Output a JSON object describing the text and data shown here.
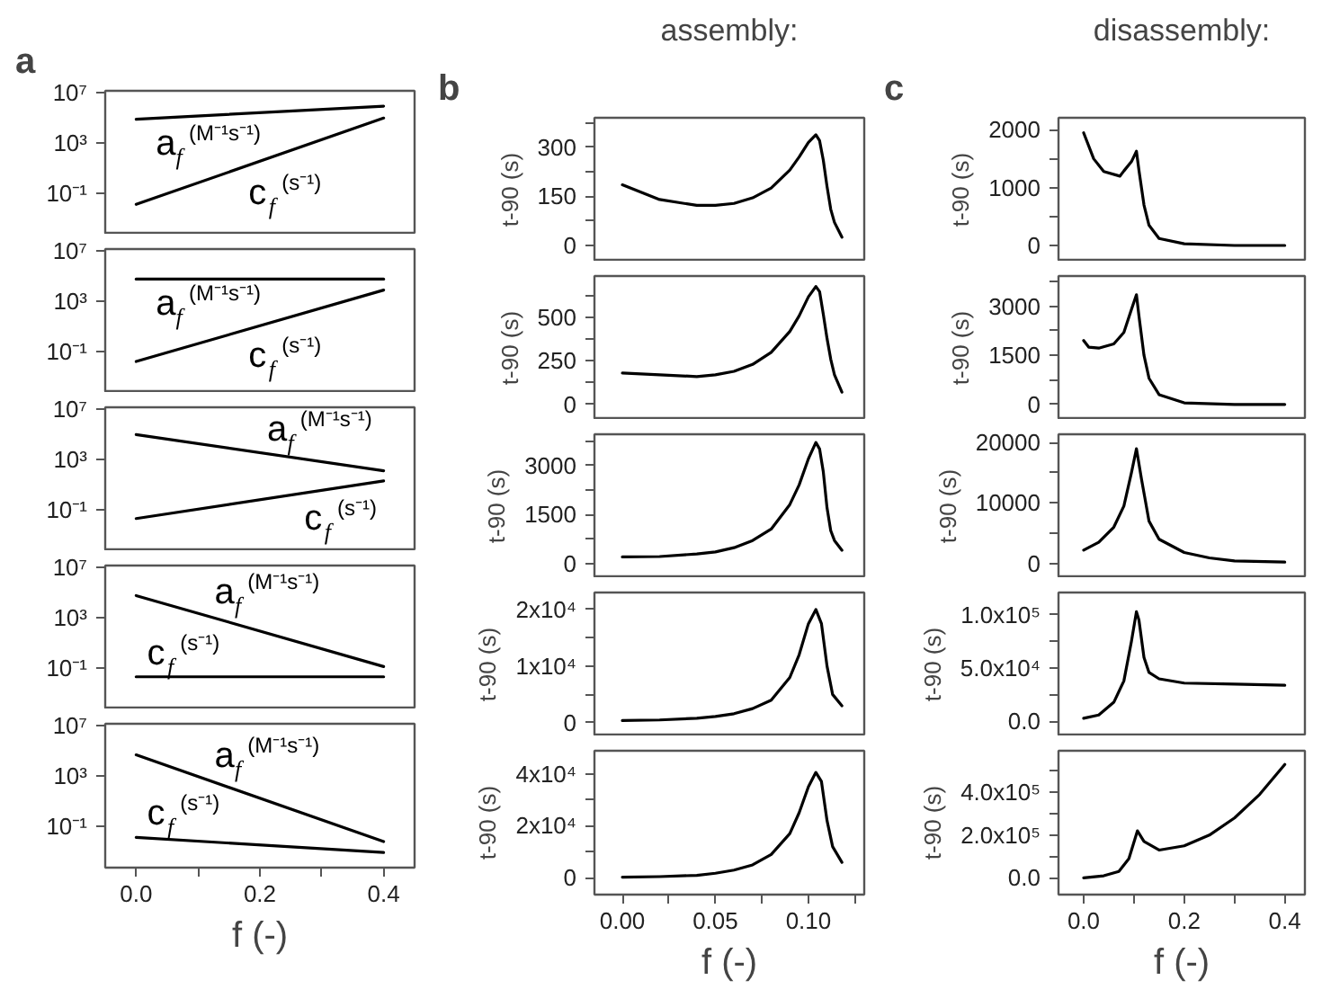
{
  "chart_data": [
    {
      "type": "line",
      "annotations": [
        "a",
        {
          "text": "a$_{f}$ (M⁻¹s⁻¹)",
          "x": 0.02,
          "y": 90000
        },
        {
          "text": "c$_{f}$ (s⁻¹)",
          "x": 0.17,
          "y": 11
        }
      ],
      "log": true,
      "x": [
        0,
        0.4
      ],
      "series": [
        {
          "color": "#000000",
          "values": [
            80000,
            900000
          ]
        },
        {
          "color": "#000000",
          "values": [
            0.013,
            100000
          ]
        }
      ],
      "xlim": [
        -0.05,
        0.45
      ],
      "ylim": [
        5e-05,
        15000000.0
      ],
      "yticks": [
        {
          "value": 10000000,
          "label": "10⁷"
        },
        {
          "value": 1000,
          "label": "10³"
        },
        {
          "value": 0.1,
          "label": "10⁻¹"
        }
      ],
      "tick_labels": "y"
    },
    {
      "type": "line",
      "annotations": [
        {
          "text": "a$_{f}$ (M⁻¹s⁻¹)",
          "x": 0.02,
          "y": 60000
        },
        {
          "text": "c$_{f}$ (s⁻¹)",
          "x": 0.17,
          "y": 4.2
        }
      ],
      "log": true,
      "x": [
        0,
        0.4
      ],
      "series": [
        {
          "color": "#000000",
          "values": [
            60000,
            60000
          ]
        },
        {
          "color": "#000000",
          "values": [
            0.016,
            8000
          ]
        }
      ],
      "xlim": [
        -0.05,
        0.45
      ],
      "ylim": [
        5e-05,
        15000000.0
      ],
      "yticks": [
        {
          "value": 10000000,
          "label": "10⁷"
        },
        {
          "value": 1000,
          "label": "10³"
        },
        {
          "value": 0.1,
          "label": "10⁻¹"
        }
      ],
      "tick_labels": "y"
    },
    {
      "type": "line",
      "annotations": [
        {
          "text": "a$_{f}$ (M⁻¹s⁻¹)",
          "x": 0.2,
          "y": 3500
        },
        {
          "text": "c$_{f}$ (s⁻¹)",
          "x": 0.26,
          "y": 1.8
        }
      ],
      "log": true,
      "x": [
        0,
        0.4
      ],
      "series": [
        {
          "color": "#000000",
          "values": [
            100000,
            130
          ]
        },
        {
          "color": "#000000",
          "values": [
            0.02,
            20
          ]
        }
      ],
      "xlim": [
        -0.05,
        0.45
      ],
      "ylim": [
        5e-05,
        15000000.0
      ],
      "yticks": [
        {
          "value": 10000000,
          "label": "10⁷"
        },
        {
          "value": 1000,
          "label": "10³"
        },
        {
          "value": 0.1,
          "label": "10⁻¹"
        }
      ],
      "tick_labels": "y"
    },
    {
      "type": "line",
      "annotations": [
        {
          "text": "a$_{f}$ (M⁻¹s⁻¹)",
          "x": 0.115,
          "y": 1400
        },
        {
          "text": "c$_{f}$ (s⁻¹)",
          "x": 0.006,
          "y": 0.02
        }
      ],
      "log": true,
      "x": [
        0,
        0.4
      ],
      "series": [
        {
          "color": "#000000",
          "values": [
            60000,
            0.13
          ]
        },
        {
          "color": "#000000",
          "values": [
            0.02,
            0.02
          ]
        }
      ],
      "xlim": [
        -0.05,
        0.45
      ],
      "ylim": [
        5e-05,
        15000000.0
      ],
      "yticks": [
        {
          "value": 10000000,
          "label": "10⁷"
        },
        {
          "value": 1000,
          "label": "10³"
        },
        {
          "value": 0.1,
          "label": "10⁻¹"
        }
      ],
      "tick_labels": "y"
    },
    {
      "type": "line",
      "annotations": [
        {
          "text": "a$_{f}$ (M⁻¹s⁻¹)",
          "x": 0.115,
          "y": 510
        },
        {
          "text": "c$_{f}$ (s⁻¹)",
          "x": 0.006,
          "y": 0.013
        }
      ],
      "log": true,
      "xlabel": "f (-)",
      "x": [
        0,
        0.4
      ],
      "series": [
        {
          "color": "#000000",
          "values": [
            50000,
            0.006
          ]
        },
        {
          "color": "#000000",
          "values": [
            0.013,
            0.0008
          ]
        }
      ],
      "xlim": [
        -0.05,
        0.45
      ],
      "xticks": [
        {
          "value": 0,
          "label": "0.0"
        },
        {
          "value": 0.1,
          "label": null
        },
        {
          "value": 0.2,
          "label": "0.2"
        },
        {
          "value": 0.3,
          "label": null
        },
        {
          "value": 0.4,
          "label": "0.4"
        }
      ],
      "ylim": [
        5e-05,
        15000000.0
      ],
      "yticks": [
        {
          "value": 10000000,
          "label": "10⁷"
        },
        {
          "value": 1000,
          "label": "10³"
        },
        {
          "value": 0.1,
          "label": "10⁻¹"
        }
      ]
    },
    {
      "type": "line",
      "title": "assembly:",
      "annotations": [
        "b"
      ],
      "ylabel": "t-90 (s)",
      "x": [
        0,
        0.02,
        0.04,
        0.05,
        0.06,
        0.07,
        0.08,
        0.09,
        0.095,
        0.1,
        0.104,
        0.106,
        0.108,
        0.11,
        0.112,
        0.114,
        0.118
      ],
      "series": [
        {
          "color": "#000000",
          "values": [
            185,
            140,
            122,
            122,
            128,
            145,
            175,
            230,
            270,
            315,
            338,
            320,
            260,
            180,
            110,
            70,
            25
          ]
        }
      ],
      "xlim": [
        -0.015,
        0.13
      ],
      "ylim": [
        -50,
        390
      ],
      "yticks": [
        0,
        {
          "value": 75,
          "label": null
        },
        150,
        {
          "value": 225,
          "label": null
        },
        300,
        {
          "value": 375,
          "label": null
        }
      ],
      "tick_labels": "y"
    },
    {
      "type": "line",
      "ylabel": "t-90 (s)",
      "x": [
        0,
        0.02,
        0.04,
        0.05,
        0.06,
        0.07,
        0.08,
        0.09,
        0.095,
        0.1,
        0.104,
        0.106,
        0.108,
        0.11,
        0.112,
        0.114,
        0.118
      ],
      "series": [
        {
          "color": "#000000",
          "values": [
            180,
            170,
            160,
            170,
            190,
            230,
            300,
            420,
            510,
            620,
            680,
            650,
            520,
            380,
            260,
            170,
            70
          ]
        }
      ],
      "xlim": [
        -0.015,
        0.13
      ],
      "ylim": [
        -90,
        740
      ],
      "yticks": [
        0,
        {
          "value": 125,
          "label": null
        },
        250,
        {
          "value": 375,
          "label": null
        },
        500,
        {
          "value": 625,
          "label": null
        }
      ],
      "tick_labels": "y"
    },
    {
      "type": "line",
      "ylabel": "t-90 (s)",
      "x": [
        0,
        0.02,
        0.04,
        0.05,
        0.06,
        0.07,
        0.08,
        0.09,
        0.095,
        0.1,
        0.104,
        0.106,
        0.108,
        0.11,
        0.112,
        0.114,
        0.118
      ],
      "series": [
        {
          "color": "#000000",
          "values": [
            200,
            210,
            290,
            350,
            480,
            700,
            1050,
            1800,
            2400,
            3200,
            3700,
            3500,
            2800,
            1700,
            1000,
            700,
            400
          ]
        }
      ],
      "xlim": [
        -0.015,
        0.13
      ],
      "ylim": [
        -450,
        3950
      ],
      "yticks": [
        0,
        {
          "value": 750,
          "label": null
        },
        1500,
        {
          "value": 2250,
          "label": null
        },
        3000,
        {
          "value": 3750,
          "label": null
        }
      ],
      "tick_labels": "y"
    },
    {
      "type": "line",
      "ylabel": "t-90 (s)",
      "x": [
        0,
        0.02,
        0.04,
        0.05,
        0.06,
        0.07,
        0.08,
        0.09,
        0.095,
        0.1,
        0.104,
        0.107,
        0.11,
        0.113,
        0.118
      ],
      "series": [
        {
          "color": "#000000",
          "values": [
            400,
            500,
            800,
            1100,
            1600,
            2500,
            4000,
            8000,
            12000,
            17500,
            20000,
            17500,
            10000,
            5000,
            3000
          ]
        }
      ],
      "xlim": [
        -0.015,
        0.13
      ],
      "ylim": [
        -2400,
        23000
      ],
      "yticks": [
        {
          "value": 0,
          "label": "0"
        },
        {
          "value": 5000,
          "label": null
        },
        {
          "value": 10000,
          "label": "1x10⁴"
        },
        {
          "value": 15000,
          "label": null
        },
        {
          "value": 20000,
          "label": "2x10⁴"
        }
      ],
      "tick_labels": "y"
    },
    {
      "type": "line",
      "ylabel": "t-90 (s)",
      "xlabel": "f (-)",
      "x": [
        0,
        0.02,
        0.04,
        0.05,
        0.06,
        0.07,
        0.08,
        0.09,
        0.095,
        0.1,
        0.104,
        0.107,
        0.11,
        0.113,
        0.118
      ],
      "series": [
        {
          "color": "#000000",
          "values": [
            300,
            500,
            1000,
            1800,
            3000,
            5000,
            9000,
            17000,
            25000,
            35000,
            40500,
            37000,
            22000,
            12000,
            6000
          ]
        }
      ],
      "xlim": [
        -0.015,
        0.13
      ],
      "xticks": [
        {
          "value": 0,
          "label": "0.00"
        },
        {
          "value": 0.025,
          "label": null
        },
        {
          "value": 0.05,
          "label": "0.05"
        },
        {
          "value": 0.075,
          "label": null
        },
        {
          "value": 0.1,
          "label": "0.10"
        },
        {
          "value": 0.125,
          "label": null
        }
      ],
      "ylim": [
        -6400,
        48800
      ],
      "yticks": [
        {
          "value": 0,
          "label": "0"
        },
        {
          "value": 10000,
          "label": null
        },
        {
          "value": 20000,
          "label": "2x10⁴"
        },
        {
          "value": 30000,
          "label": null
        },
        {
          "value": 40000,
          "label": "4x10⁴"
        }
      ]
    },
    {
      "type": "line",
      "title": "disassembly:",
      "annotations": [
        "c"
      ],
      "ylabel": "t-90 (s)",
      "x": [
        0,
        0.02,
        0.04,
        0.072,
        0.08,
        0.095,
        0.105,
        0.11,
        0.12,
        0.13,
        0.15,
        0.2,
        0.3,
        0.4
      ],
      "series": [
        {
          "color": "#000000",
          "values": [
            1950,
            1500,
            1280,
            1200,
            1290,
            1450,
            1630,
            1300,
            700,
            350,
            120,
            30,
            0,
            0
          ]
        }
      ],
      "xlim": [
        -0.05,
        0.44
      ],
      "ylim": [
        -280,
        2210
      ],
      "yticks": [
        0,
        {
          "value": 500,
          "label": null
        },
        1000,
        {
          "value": 1500,
          "label": null
        },
        2000
      ],
      "tick_labels": "y"
    },
    {
      "type": "line",
      "ylabel": "t-90 (s)",
      "x": [
        0,
        0.01,
        0.03,
        0.06,
        0.08,
        0.095,
        0.105,
        0.11,
        0.12,
        0.13,
        0.15,
        0.2,
        0.3,
        0.4
      ],
      "series": [
        {
          "color": "#000000",
          "values": [
            1950,
            1750,
            1720,
            1850,
            2200,
            2900,
            3350,
            2700,
            1500,
            800,
            300,
            50,
            0,
            0
          ]
        }
      ],
      "xlim": [
        -0.05,
        0.44
      ],
      "ylim": [
        -470,
        3920
      ],
      "yticks": [
        0,
        {
          "value": 750,
          "label": null
        },
        1500,
        {
          "value": 2250,
          "label": null
        },
        3000,
        {
          "value": 3750,
          "label": null
        }
      ],
      "tick_labels": "y"
    },
    {
      "type": "line",
      "ylabel": "t-90 (s)",
      "x": [
        0,
        0.03,
        0.06,
        0.08,
        0.095,
        0.105,
        0.115,
        0.13,
        0.15,
        0.2,
        0.25,
        0.3,
        0.4
      ],
      "series": [
        {
          "color": "#000000",
          "values": [
            2200,
            3500,
            6000,
            9500,
            15000,
            19000,
            14000,
            7000,
            4000,
            1800,
            900,
            400,
            200
          ]
        }
      ],
      "xlim": [
        -0.05,
        0.44
      ],
      "ylim": [
        -2450,
        21400
      ],
      "yticks": [
        0,
        {
          "value": 5000,
          "label": null
        },
        10000,
        {
          "value": 15000,
          "label": null
        },
        20000
      ],
      "tick_labels": "y"
    },
    {
      "type": "line",
      "ylabel": "t-90 (s)",
      "x": [
        0,
        0.03,
        0.06,
        0.08,
        0.095,
        0.105,
        0.11,
        0.12,
        0.13,
        0.15,
        0.2,
        0.3,
        0.4
      ],
      "series": [
        {
          "color": "#000000",
          "values": [
            3000,
            6000,
            18000,
            38000,
            75000,
            103000,
            95000,
            60000,
            46000,
            40000,
            36000,
            35000,
            34000
          ]
        }
      ],
      "xlim": [
        -0.05,
        0.44
      ],
      "ylim": [
        -14000,
        121000
      ],
      "yticks": [
        {
          "value": 0,
          "label": "0.0"
        },
        {
          "value": 25000,
          "label": null
        },
        {
          "value": 50000,
          "label": "5.0x10⁴"
        },
        {
          "value": 75000,
          "label": null
        },
        {
          "value": 100000,
          "label": "1.0x10⁵"
        }
      ],
      "tick_labels": "y"
    },
    {
      "type": "line",
      "ylabel": "t-90 (s)",
      "xlabel": "f (-)",
      "x": [
        0,
        0.04,
        0.07,
        0.09,
        0.107,
        0.12,
        0.15,
        0.2,
        0.25,
        0.3,
        0.35,
        0.4
      ],
      "series": [
        {
          "color": "#000000",
          "values": [
            0,
            10000,
            30000,
            90000,
            220000,
            170000,
            130000,
            150000,
            200000,
            280000,
            390000,
            530000
          ]
        }
      ],
      "xlim": [
        -0.05,
        0.44
      ],
      "xticks": [
        {
          "value": 0,
          "label": "0.0"
        },
        {
          "value": 0.1,
          "label": null
        },
        {
          "value": 0.2,
          "label": "0.2"
        },
        {
          "value": 0.3,
          "label": null
        },
        {
          "value": 0.4,
          "label": "0.4"
        }
      ],
      "ylim": [
        -78000,
        594000
      ],
      "yticks": [
        {
          "value": 0,
          "label": "0.0"
        },
        {
          "value": 100000,
          "label": null
        },
        {
          "value": 200000,
          "label": "2.0x10⁵"
        },
        {
          "value": 300000,
          "label": null
        },
        {
          "value": 400000,
          "label": "4.0x10⁵"
        },
        {
          "value": 500000,
          "label": null
        }
      ]
    }
  ]
}
